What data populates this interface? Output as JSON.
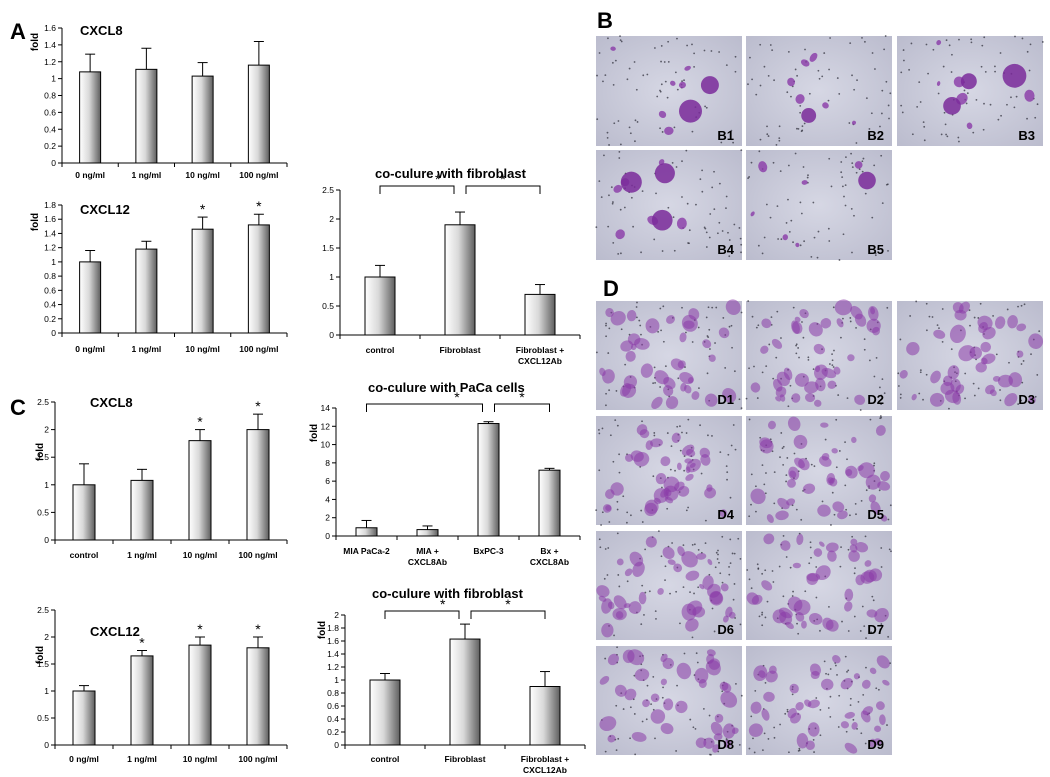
{
  "panels": [
    "A",
    "B",
    "C",
    "D"
  ],
  "y_axis_label": "fold",
  "micrographs": {
    "B": [
      "B1",
      "B2",
      "B3",
      "B4",
      "B5"
    ],
    "D": [
      "D1",
      "D2",
      "D3",
      "D4",
      "D5",
      "D6",
      "D7",
      "D8",
      "D9"
    ]
  },
  "colors": {
    "bar_light": "#ffffff",
    "bar_dark": "#6b6b6b",
    "micro_bg": "#c9cad8",
    "stain": "#8a3aa8"
  },
  "chart_data": [
    {
      "type": "bar",
      "panel": "A",
      "title": "CXCL8",
      "ylabel": "fold",
      "ylim": [
        0,
        1.6
      ],
      "yticks": [
        "0",
        "0.2",
        "0.4",
        "0.6",
        "0.8",
        "1",
        "1.2",
        "1.4",
        "1.6"
      ],
      "categories": [
        "0 ng/ml",
        "1 ng/ml",
        "10 ng/ml",
        "100 ng/ml"
      ],
      "values": [
        1.08,
        1.11,
        1.03,
        1.16
      ],
      "errors": [
        0.21,
        0.25,
        0.16,
        0.28
      ],
      "significant": [
        false,
        false,
        false,
        false
      ]
    },
    {
      "type": "bar",
      "panel": "A",
      "title": "CXCL12",
      "ylabel": "fold",
      "ylim": [
        0,
        1.8
      ],
      "yticks": [
        "0",
        "0.2",
        "0.4",
        "0.6",
        "0.8",
        "1",
        "1.2",
        "1.4",
        "1.6",
        "1.8"
      ],
      "categories": [
        "0 ng/ml",
        "1 ng/ml",
        "10 ng/ml",
        "100 ng/ml"
      ],
      "values": [
        1.0,
        1.18,
        1.46,
        1.52
      ],
      "errors": [
        0.16,
        0.11,
        0.17,
        0.15
      ],
      "significant": [
        false,
        false,
        true,
        true
      ]
    },
    {
      "type": "bar",
      "panel": "A",
      "title": "co-culure with fibroblast",
      "ylabel": "",
      "ylim": [
        0,
        2.5
      ],
      "yticks": [
        "0",
        "0.5",
        "1",
        "1.5",
        "2",
        "2.5"
      ],
      "categories": [
        "control",
        "Fibroblast",
        "Fibroblast +\nCXCL12Ab"
      ],
      "values": [
        1.0,
        1.9,
        0.7
      ],
      "errors": [
        0.2,
        0.22,
        0.17
      ],
      "significant": [
        false,
        false,
        false
      ],
      "brackets": [
        {
          "from": 0,
          "to": 1,
          "label": "*"
        },
        {
          "from": 1,
          "to": 2,
          "label": "*"
        }
      ]
    },
    {
      "type": "bar",
      "panel": "C",
      "title": "CXCL8",
      "ylabel": "fold",
      "ylim": [
        0,
        2.5
      ],
      "yticks": [
        "0",
        "0.5",
        "1",
        "1.5",
        "2",
        "2.5"
      ],
      "categories": [
        "control",
        "1 ng/ml",
        "10 ng/ml",
        "100 ng/ml"
      ],
      "values": [
        1.0,
        1.08,
        1.8,
        2.0
      ],
      "errors": [
        0.38,
        0.2,
        0.2,
        0.28
      ],
      "significant": [
        false,
        false,
        true,
        true
      ]
    },
    {
      "type": "bar",
      "panel": "C",
      "title": "co-culure with PaCa cells",
      "ylabel": "fold",
      "ylim": [
        0,
        14
      ],
      "yticks": [
        "0",
        "2",
        "4",
        "6",
        "8",
        "10",
        "12",
        "14"
      ],
      "categories": [
        "MIA PaCa-2",
        "MIA +\nCXCL8Ab",
        "BxPC-3",
        "Bx +\nCXCL8Ab"
      ],
      "values": [
        0.9,
        0.7,
        12.3,
        7.2
      ],
      "errors": [
        0.8,
        0.4,
        0.2,
        0.2
      ],
      "significant": [
        false,
        false,
        false,
        false
      ],
      "brackets": [
        {
          "from": 0,
          "to": 2,
          "label": "*"
        },
        {
          "from": 2,
          "to": 3,
          "label": "*"
        }
      ]
    },
    {
      "type": "bar",
      "panel": "C",
      "title": "CXCL12",
      "ylabel": "fold",
      "ylim": [
        0,
        2.5
      ],
      "yticks": [
        "0",
        "0.5",
        "1",
        "1.5",
        "2",
        "2.5"
      ],
      "categories": [
        "0 ng/ml",
        "1 ng/ml",
        "10 ng/ml",
        "100 ng/ml"
      ],
      "values": [
        1.0,
        1.65,
        1.85,
        1.8
      ],
      "errors": [
        0.1,
        0.1,
        0.15,
        0.2
      ],
      "significant": [
        false,
        true,
        true,
        true
      ]
    },
    {
      "type": "bar",
      "panel": "C",
      "title": "co-culure with fibroblast",
      "ylabel": "fold",
      "ylim": [
        0,
        2
      ],
      "yticks": [
        "0",
        "0.2",
        "0.4",
        "0.6",
        "0.8",
        "1",
        "1.2",
        "1.4",
        "1.6",
        "1.8",
        "2"
      ],
      "categories": [
        "control",
        "Fibroblast",
        "Fibroblast +\nCXCL12Ab"
      ],
      "values": [
        1.0,
        1.63,
        0.9
      ],
      "errors": [
        0.1,
        0.23,
        0.23
      ],
      "significant": [
        false,
        false,
        false
      ],
      "brackets": [
        {
          "from": 0,
          "to": 1,
          "label": "*"
        },
        {
          "from": 1,
          "to": 2,
          "label": "*"
        }
      ]
    }
  ]
}
